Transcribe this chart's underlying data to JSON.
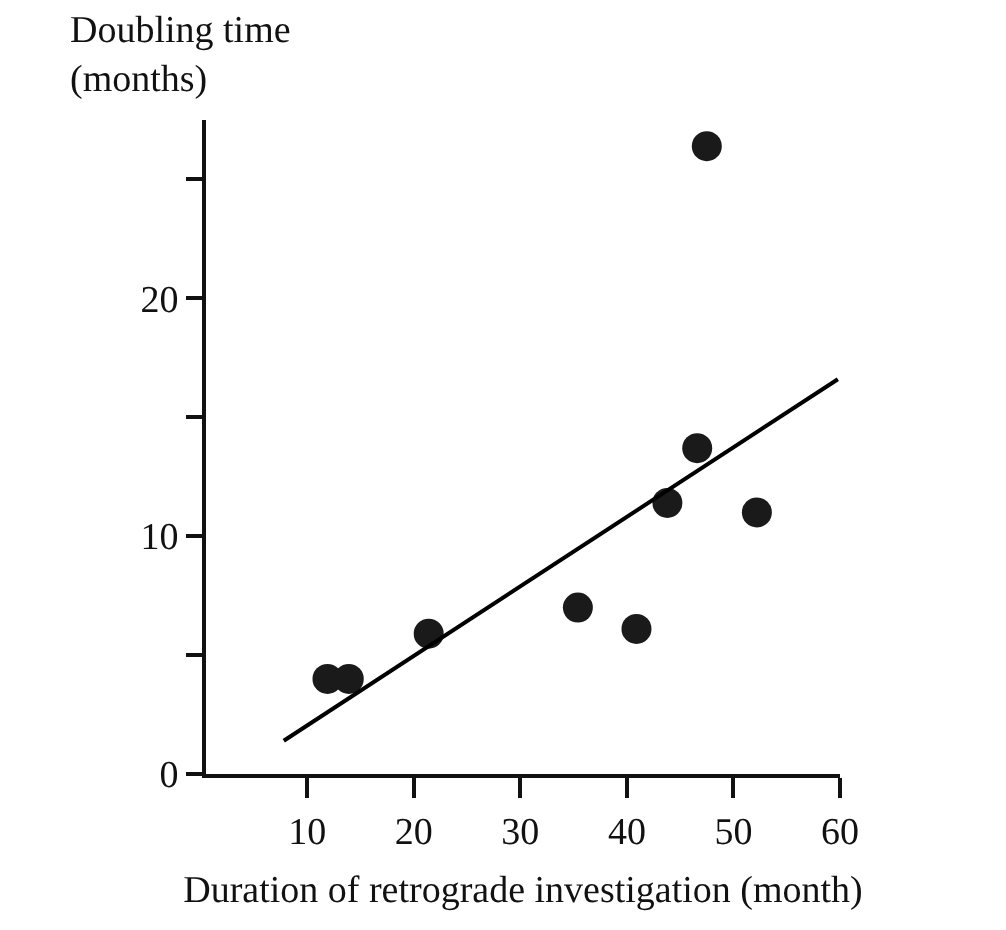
{
  "chart_data": {
    "type": "scatter",
    "xlabel": "Duration of retrograde investigation (month)",
    "ylabel": "Doubling time\n(months)",
    "x": [
      11.9,
      13.9,
      21.4,
      35.4,
      40.9,
      43.8,
      46.6,
      52.2,
      47.5
    ],
    "series": [
      {
        "color": "#1a1a1a",
        "marker": "circle",
        "values": [
          4.0,
          4.0,
          5.9,
          7.0,
          6.1,
          11.4,
          13.7,
          11.0,
          26.4
        ]
      },
      {
        "type": "line",
        "marker": "none",
        "color": "#000000",
        "x": [
          7.8,
          59.8
        ],
        "values": [
          1.4,
          16.6
        ]
      }
    ],
    "xlim": [
      0.5,
      60
    ],
    "xticks": [
      10,
      20,
      30,
      40,
      50,
      60
    ],
    "ylim": [
      0,
      27.5
    ],
    "yticks": [
      0,
      {
        "value": 5,
        "label": null
      },
      10,
      {
        "value": 15,
        "label": null
      },
      20,
      {
        "value": 25,
        "label": null
      }
    ],
    "grid": false
  }
}
